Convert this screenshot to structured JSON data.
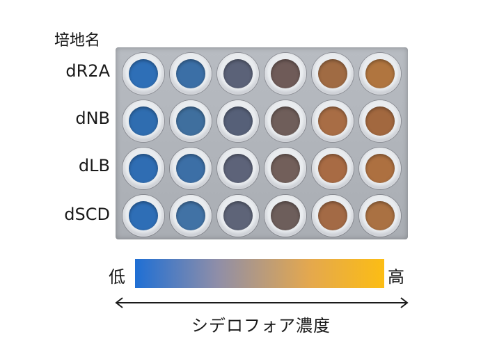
{
  "medium_header": "培地名",
  "media": [
    {
      "label": "dR2A",
      "wells": [
        "#2e6fb7",
        "#3b6fa6",
        "#5b6278",
        "#6f5b58",
        "#a06b43",
        "#b0753f"
      ]
    },
    {
      "label": "dNB",
      "wells": [
        "#2f6db0",
        "#3f6f9e",
        "#566078",
        "#6f5e5a",
        "#a86d45",
        "#a2683f"
      ]
    },
    {
      "label": "dLB",
      "wells": [
        "#2f6db3",
        "#3c6fa6",
        "#5d6379",
        "#725f5a",
        "#a86b44",
        "#ad7040"
      ]
    },
    {
      "label": "dSCD",
      "wells": [
        "#2e6eb6",
        "#4172a5",
        "#5e6478",
        "#6d5e5b",
        "#a36a45",
        "#aa7142"
      ]
    }
  ],
  "scale": {
    "low_label": "低",
    "high_label": "高",
    "gradient_colors": [
      "#1f6fd4",
      "#8f8ea8",
      "#e4a84e",
      "#fcbd14"
    ]
  },
  "axis_label": "シデロフォア濃度",
  "colors": {
    "text": "#1a1a1a",
    "arrow": "#1a1a1a"
  }
}
